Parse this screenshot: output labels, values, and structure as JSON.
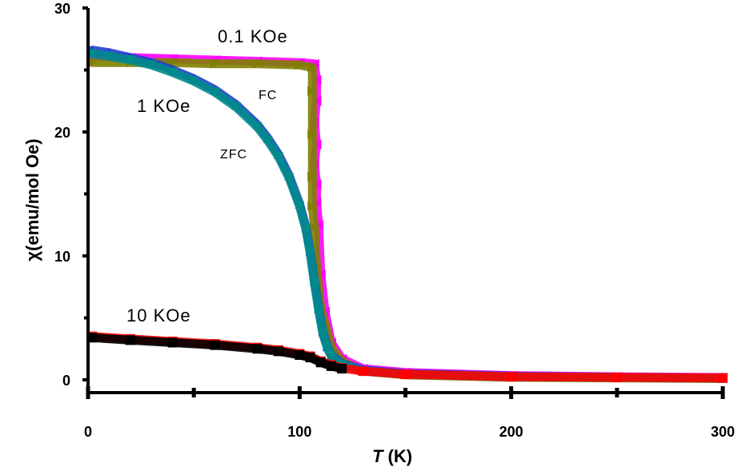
{
  "chart_data": {
    "type": "scatter",
    "xlabel_italic": "T",
    "xlabel_rest": " (K)",
    "ylabel": "χ(emu/mol Oe)",
    "xlim": [
      0,
      300
    ],
    "ylim": [
      0,
      30
    ],
    "x_ticks": [
      0,
      100,
      200,
      300
    ],
    "y_ticks": [
      0,
      10,
      20,
      30
    ],
    "x_minor_ticks": [
      50,
      150,
      250
    ],
    "y_minor_ticks": [
      5,
      15,
      25
    ],
    "grid": false,
    "legend": "none",
    "annotations": {
      "field_low": "0.1 KOe",
      "field_mid": "1 KOe",
      "field_high": "10 KOe",
      "fc": "FC",
      "zfc": "ZFC"
    },
    "series": [
      {
        "color": "#FF00FF",
        "marker": "triangle-left",
        "x": [
          2,
          20,
          40,
          60,
          80,
          100,
          107,
          108,
          108,
          107,
          108,
          107,
          108,
          108,
          109,
          110,
          112,
          115,
          120,
          130,
          150,
          200,
          250,
          300
        ],
        "y": [
          26.1,
          26.0,
          25.9,
          25.8,
          25.7,
          25.6,
          25.5,
          24.2,
          22.5,
          20.8,
          19.0,
          17.4,
          15.8,
          14.3,
          12.5,
          8.5,
          5.5,
          3.0,
          1.7,
          0.9,
          0.6,
          0.35,
          0.25,
          0.2
        ]
      },
      {
        "color": "#808000",
        "marker": "triangle-right",
        "x": [
          2,
          20,
          40,
          60,
          80,
          100,
          106,
          106,
          106,
          106,
          106,
          107,
          108,
          109,
          110,
          112,
          115,
          120,
          130,
          150,
          200,
          250,
          300
        ],
        "y": [
          25.6,
          25.6,
          25.6,
          25.5,
          25.5,
          25.4,
          25.2,
          23.3,
          19.8,
          16.4,
          14.0,
          12.3,
          9.2,
          7.3,
          5.8,
          4.5,
          2.6,
          1.5,
          0.7,
          0.4,
          0.2,
          0.15,
          0.1
        ]
      },
      {
        "color": "#1F3FD0",
        "marker": "triangle-up",
        "x": [
          2,
          10,
          20,
          30,
          40,
          50,
          60,
          70,
          80,
          85,
          90,
          95,
          100,
          103,
          105,
          107,
          109,
          111,
          113,
          115,
          120,
          130,
          150,
          200,
          250,
          300
        ],
        "y": [
          26.6,
          26.4,
          26.0,
          25.6,
          25.0,
          24.3,
          23.4,
          22.2,
          20.6,
          19.5,
          18.2,
          16.5,
          14.2,
          12.3,
          10.4,
          8.0,
          5.8,
          3.9,
          2.7,
          2.0,
          1.3,
          0.8,
          0.5,
          0.3,
          0.2,
          0.15
        ]
      },
      {
        "color": "#008B8B",
        "marker": "triangle-down",
        "x": [
          2,
          10,
          20,
          30,
          40,
          50,
          60,
          70,
          80,
          85,
          90,
          95,
          100,
          103,
          105,
          107,
          109,
          111,
          113,
          115,
          120,
          130,
          150,
          200,
          250,
          300
        ],
        "y": [
          26.3,
          26.1,
          25.8,
          25.4,
          24.8,
          24.1,
          23.2,
          22.0,
          20.4,
          19.3,
          18.0,
          16.3,
          14.0,
          12.1,
          10.2,
          7.8,
          5.6,
          3.7,
          2.6,
          1.9,
          1.2,
          0.7,
          0.45,
          0.25,
          0.2,
          0.15
        ]
      },
      {
        "color": "#FF0000",
        "marker": "square",
        "x": [
          2,
          20,
          40,
          60,
          80,
          90,
          100,
          105,
          110,
          115,
          120,
          130,
          150,
          200,
          250,
          300
        ],
        "y": [
          3.5,
          3.3,
          3.1,
          2.9,
          2.6,
          2.4,
          2.1,
          1.9,
          1.5,
          1.2,
          0.95,
          0.7,
          0.45,
          0.25,
          0.2,
          0.15
        ]
      },
      {
        "color": "#000000",
        "marker": "square",
        "x": [
          2,
          20,
          40,
          60,
          80,
          90,
          100,
          105,
          110,
          115,
          120
        ],
        "y": [
          3.4,
          3.2,
          3.0,
          2.8,
          2.5,
          2.3,
          2.0,
          1.8,
          1.4,
          1.1,
          0.9
        ]
      }
    ]
  }
}
